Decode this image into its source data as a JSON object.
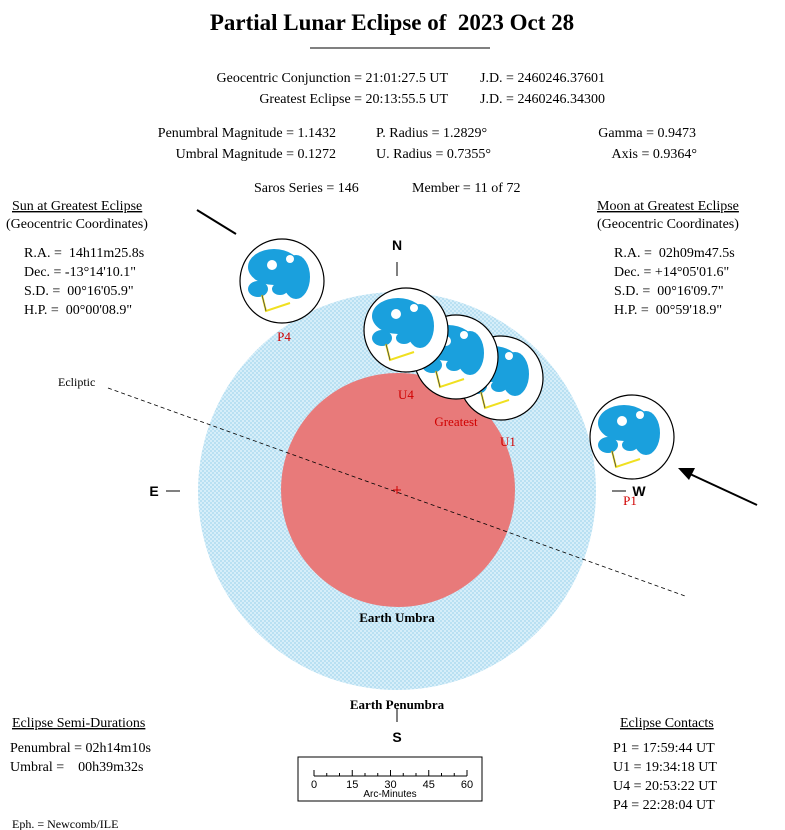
{
  "header": {
    "title": "Partial Lunar Eclipse of  2023 Oct 28"
  },
  "summary": {
    "conjunction": "Geocentric Conjunction = 21:01:27.5 UT",
    "conjunction_jd": "J.D. = 2460246.37601",
    "greatest": "Greatest Eclipse = 20:13:55.5 UT",
    "greatest_jd": "J.D. = 2460246.34300",
    "pen_mag": "Penumbral Magnitude = 1.1432",
    "p_radius": "P. Radius = 1.2829°",
    "gamma": "Gamma = 0.9473",
    "umb_mag": "Umbral Magnitude = 0.1272",
    "u_radius": "U. Radius = 0.7355°",
    "axis": "Axis = 0.9364°",
    "saros": "Saros Series = 146",
    "member": "Member = 11 of 72"
  },
  "sun": {
    "title": "Sun at Greatest Eclipse",
    "subtitle": "(Geocentric Coordinates)",
    "lines": [
      "R.A. =  14h11m25.8s",
      "Dec. = -13°14'10.1\"",
      "S.D. =  00°16'05.9\"",
      "H.P. =  00°00'08.9\""
    ]
  },
  "moon": {
    "title": "Moon at Greatest Eclipse",
    "subtitle": "(Geocentric Coordinates)",
    "lines": [
      "R.A. =  02h09m47.5s",
      "Dec. = +14°05'01.6\"",
      "S.D. =  00°16'09.7\"",
      "H.P. =  00°59'18.9\""
    ]
  },
  "diagram": {
    "north": "N",
    "south": "S",
    "east": "E",
    "west": "W",
    "ecliptic": "Ecliptic",
    "umbra": "Earth Umbra",
    "penumbra": "Earth Penumbra",
    "contacts": [
      "P4",
      "U4",
      "Greatest",
      "U1",
      "P1"
    ]
  },
  "durations": {
    "title": "Eclipse Semi-Durations",
    "lines": [
      "Penumbral = 02h14m10s",
      "Umbral =    00h39m32s"
    ]
  },
  "contacts": {
    "title": "Eclipse Contacts",
    "lines": [
      "P1 = 17:59:44 UT",
      "U1 = 19:34:18 UT",
      "U4 = 20:53:22 UT",
      "P4 = 22:28:04 UT"
    ]
  },
  "scale": {
    "ticks": [
      "0",
      "15",
      "30",
      "45",
      "60"
    ],
    "label": "Arc-Minutes"
  },
  "footer": {
    "text": "Eph. = Newcomb/ILE"
  }
}
